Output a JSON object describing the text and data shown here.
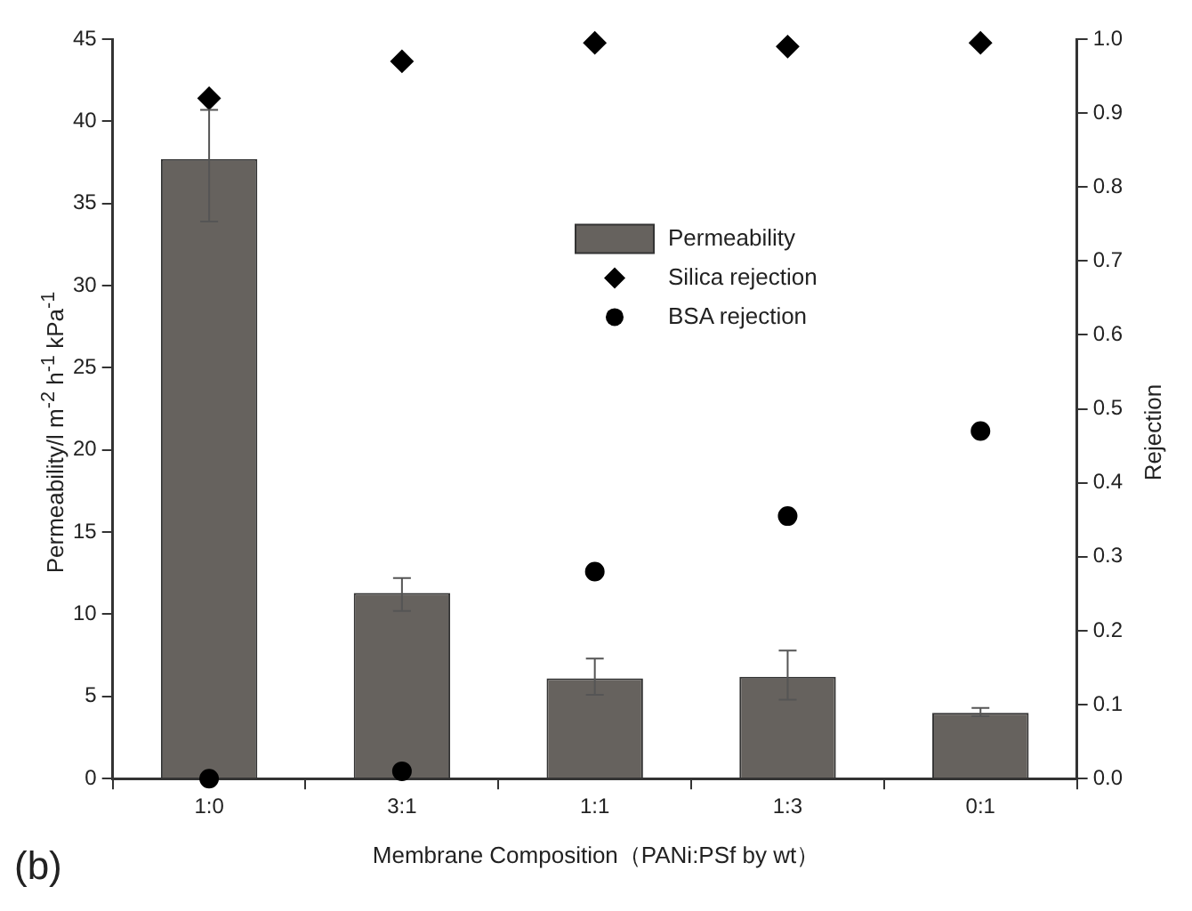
{
  "chart_data": {
    "type": "bar",
    "xlabel": "Membrane Composition（PANi:PSf by wt）",
    "ylabel": "Permeability/l m$^{-2}$ h$^{-1}$ kPa$^{-1}$",
    "y2label": "Rejection",
    "annotations": [
      "(b)"
    ],
    "categories": [
      "1:0",
      "3:1",
      "1:1",
      "1:3",
      "0:1"
    ],
    "series": [
      {
        "name": "Permeability",
        "color": "#66625e",
        "values": [
          37.7,
          11.3,
          6.1,
          6.2,
          4.0
        ],
        "errors": [
          [
            33.9,
            40.7
          ],
          [
            10.2,
            12.2
          ],
          [
            5.1,
            7.3
          ],
          [
            4.8,
            7.8
          ],
          [
            3.8,
            4.3
          ]
        ]
      },
      {
        "name": "Silica rejection",
        "type": "scatter",
        "axis": "y2",
        "marker": "diamond",
        "color": "#000000",
        "values": [
          0.92,
          0.97,
          0.995,
          0.99,
          0.995
        ]
      },
      {
        "name": "BSA rejection",
        "type": "scatter",
        "axis": "y2",
        "marker": "circle",
        "color": "#000000",
        "values": [
          0.0,
          0.01,
          0.28,
          0.355,
          0.47
        ]
      }
    ],
    "ylim": [
      0,
      45
    ],
    "yticks": [
      0,
      5,
      10,
      15,
      20,
      25,
      30,
      35,
      40,
      45
    ],
    "y2lim": [
      0,
      1.0
    ],
    "y2ticks": [
      {
        "value": 0,
        "label": "0.0"
      },
      0.1,
      0.2,
      0.3,
      0.4,
      0.5,
      0.6,
      0.7,
      0.8,
      0.9,
      {
        "value": 1,
        "label": "1.0"
      }
    ],
    "grid": false,
    "legend": "right"
  }
}
